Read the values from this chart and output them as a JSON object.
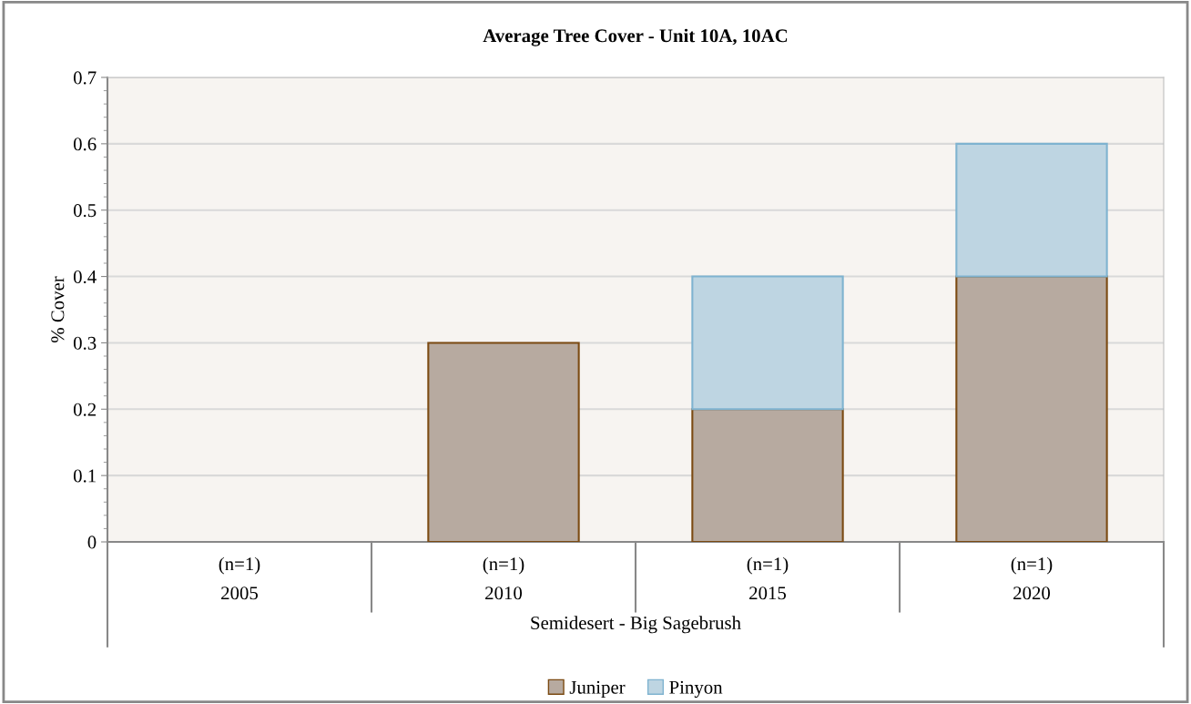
{
  "chart_data": {
    "type": "bar",
    "title": "Average Tree Cover - Unit 10A, 10AC",
    "xlabel": "Semidesert - Big Sagebrush",
    "ylabel": "% Cover",
    "categories": [
      "(n=1)\n2005",
      "(n=1)\n2010",
      "(n=1)\n2015",
      "(n=1)\n2020"
    ],
    "stacked": true,
    "series": [
      {
        "name": "Juniper",
        "color": "#b7aaa0",
        "values": [
          null,
          0.3,
          0.2,
          0.4
        ]
      },
      {
        "name": "Pinyon",
        "color": "#bed5e2",
        "values": [
          null,
          null,
          0.2,
          0.2
        ]
      }
    ],
    "ylim": [
      0,
      0.7
    ],
    "yticks": [
      0,
      0.1,
      0.2,
      0.3,
      0.4,
      0.5,
      0.6,
      0.7
    ],
    "grid": "y",
    "legend": "bottom"
  }
}
